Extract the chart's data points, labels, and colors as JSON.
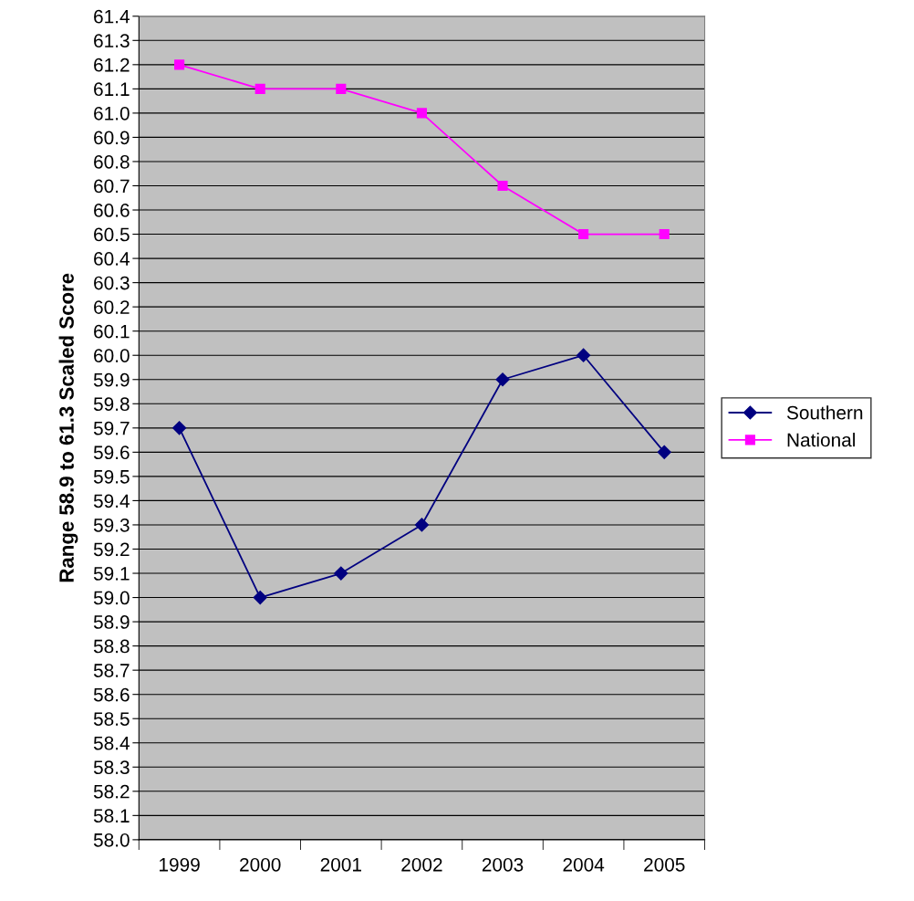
{
  "chart_data": {
    "type": "line",
    "ylabel": "Range 58.9 to 61.3 Scaled Score",
    "categories": [
      "1999",
      "2000",
      "2001",
      "2002",
      "2003",
      "2004",
      "2005"
    ],
    "series": [
      {
        "name": "Southern",
        "color": "#000080",
        "marker": "diamond",
        "values": [
          59.7,
          59.0,
          59.1,
          59.3,
          59.9,
          60.0,
          59.6
        ]
      },
      {
        "name": "National",
        "color": "#ff00ff",
        "marker": "square",
        "values": [
          61.2,
          61.1,
          61.1,
          61.0,
          60.7,
          60.5,
          60.5
        ]
      }
    ],
    "ylim": [
      58.0,
      61.4
    ],
    "yticks": [
      {
        "value": 58.0,
        "label": "58.0"
      },
      58.1,
      58.2,
      58.3,
      58.4,
      58.5,
      58.6,
      58.7,
      58.8,
      58.9,
      {
        "value": 59.0,
        "label": "59.0"
      },
      59.1,
      59.2,
      59.3,
      59.4,
      59.5,
      59.6,
      59.7,
      59.8,
      59.9,
      {
        "value": 60.0,
        "label": "60.0"
      },
      60.1,
      60.2,
      60.3,
      60.4,
      60.5,
      60.6,
      60.7,
      60.8,
      60.9,
      {
        "value": 61.0,
        "label": "61.0"
      },
      61.1,
      61.2,
      61.3,
      61.4
    ],
    "grid": "y",
    "legend": "right",
    "line_style": "solid"
  }
}
